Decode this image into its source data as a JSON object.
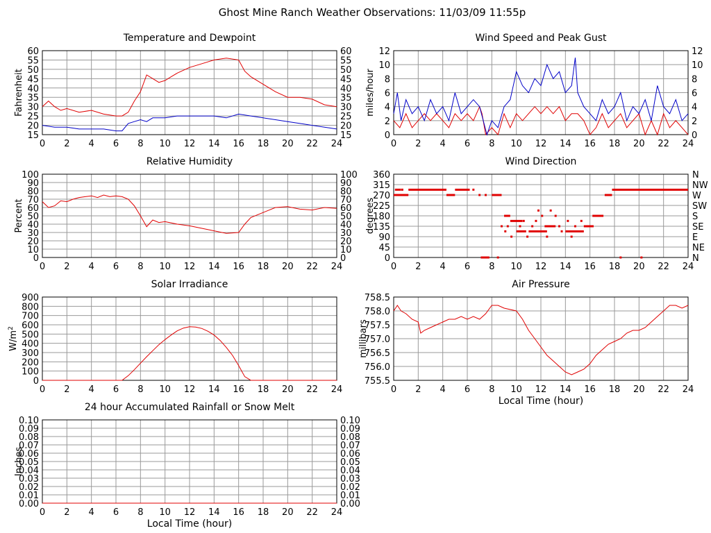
{
  "page_title": "Ghost Mine Ranch Weather Observations: 11/03/09 11:55p",
  "colors": {
    "red": "#e00000",
    "blue": "#0000c8",
    "grid": "#999999"
  },
  "chart_data": [
    {
      "id": "temperature",
      "type": "line",
      "title": "Temperature and Dewpoint",
      "ylabel": "Fahrenheit",
      "xlabel": "",
      "xlim": [
        0,
        24
      ],
      "ylim": [
        15,
        60
      ],
      "yticks": [
        "15",
        "20",
        "25",
        "30",
        "35",
        "40",
        "45",
        "50",
        "55",
        "60"
      ],
      "xticks": [
        "0",
        "2",
        "4",
        "6",
        "8",
        "10",
        "12",
        "14",
        "16",
        "18",
        "20",
        "22",
        "24"
      ],
      "right_axis": true,
      "series": [
        {
          "color": "#e00000",
          "x": [
            0,
            0.5,
            1,
            1.5,
            2,
            3,
            4,
            5,
            6,
            6.5,
            7,
            7.5,
            8,
            8.5,
            9,
            9.5,
            10,
            10.5,
            11,
            12,
            13,
            14,
            15,
            16,
            16.5,
            17,
            18,
            19,
            20,
            21,
            22,
            23,
            24
          ],
          "y": [
            30,
            33,
            30,
            28,
            29,
            27,
            28,
            26,
            25,
            25,
            27,
            33,
            38,
            47,
            45,
            43,
            44,
            46,
            48,
            51,
            53,
            55,
            56,
            55,
            49,
            46,
            42,
            38,
            35,
            35,
            34,
            31,
            30
          ]
        },
        {
          "color": "#0000c8",
          "x": [
            0,
            1,
            2,
            3,
            4,
            5,
            6,
            6.5,
            7,
            7.5,
            8,
            8.5,
            9,
            10,
            11,
            12,
            13,
            14,
            15,
            16,
            17,
            18,
            19,
            20,
            21,
            22,
            23,
            24
          ],
          "y": [
            20,
            19,
            19,
            18,
            18,
            18,
            17,
            17,
            21,
            22,
            23,
            22,
            24,
            24,
            25,
            25,
            25,
            25,
            24,
            26,
            25,
            24,
            23,
            22,
            21,
            20,
            19,
            18
          ]
        }
      ]
    },
    {
      "id": "wind_speed",
      "type": "line",
      "title": "Wind Speed and Peak Gust",
      "ylabel": "miles/hour",
      "xlabel": "",
      "xlim": [
        0,
        24
      ],
      "ylim": [
        0,
        12
      ],
      "yticks": [
        "0",
        "2",
        "4",
        "6",
        "8",
        "10",
        "12"
      ],
      "xticks": [
        "0",
        "2",
        "4",
        "6",
        "8",
        "10",
        "12",
        "14",
        "16",
        "18",
        "20",
        "22",
        "24"
      ],
      "right_axis": true,
      "series": [
        {
          "color": "#e00000",
          "x": [
            0,
            0.5,
            1,
            1.5,
            2,
            2.5,
            3,
            3.5,
            4,
            4.5,
            5,
            5.5,
            6,
            6.5,
            7,
            7.2,
            7.5,
            8,
            8.5,
            9,
            9.5,
            10,
            10.5,
            11,
            11.5,
            12,
            12.5,
            13,
            13.5,
            14,
            14.5,
            15,
            15.5,
            16,
            16.5,
            17,
            17.5,
            18,
            18.5,
            19,
            19.5,
            20,
            20.5,
            21,
            21.5,
            22,
            22.5,
            23,
            23.5,
            24
          ],
          "y": [
            2,
            1,
            3,
            1,
            2,
            3,
            2,
            3,
            2,
            1,
            3,
            2,
            3,
            2,
            4,
            3,
            0,
            1,
            0,
            3,
            1,
            3,
            2,
            3,
            4,
            3,
            4,
            3,
            4,
            2,
            3,
            3,
            2,
            0,
            1,
            3,
            1,
            2,
            3,
            1,
            2,
            3,
            0,
            2,
            0,
            3,
            1,
            2,
            1,
            0
          ]
        },
        {
          "color": "#0000c8",
          "x": [
            0,
            0.3,
            0.6,
            1,
            1.5,
            2,
            2.5,
            3,
            3.5,
            4,
            4.5,
            5,
            5.5,
            6,
            6.5,
            7,
            7.3,
            7.6,
            8,
            8.5,
            9,
            9.5,
            10,
            10.5,
            11,
            11.5,
            12,
            12.5,
            13,
            13.5,
            14,
            14.5,
            14.8,
            15,
            15.5,
            16,
            16.5,
            17,
            17.5,
            18,
            18.5,
            19,
            19.5,
            20,
            20.5,
            21,
            21.5,
            22,
            22.5,
            23,
            23.5,
            24
          ],
          "y": [
            3,
            6,
            2,
            5,
            3,
            4,
            2,
            5,
            3,
            4,
            2,
            6,
            3,
            4,
            5,
            4,
            2,
            0,
            2,
            1,
            4,
            5,
            9,
            7,
            6,
            8,
            7,
            10,
            8,
            9,
            6,
            7,
            11,
            6,
            4,
            3,
            2,
            5,
            3,
            4,
            6,
            2,
            4,
            3,
            5,
            2,
            7,
            4,
            3,
            5,
            2,
            3
          ]
        }
      ]
    },
    {
      "id": "humidity",
      "type": "line",
      "title": "Relative Humidity",
      "ylabel": "Percent",
      "xlabel": "",
      "xlim": [
        0,
        24
      ],
      "ylim": [
        0,
        100
      ],
      "yticks": [
        "0",
        "10",
        "20",
        "30",
        "40",
        "50",
        "60",
        "70",
        "80",
        "90",
        "100"
      ],
      "xticks": [
        "0",
        "2",
        "4",
        "6",
        "8",
        "10",
        "12",
        "14",
        "16",
        "18",
        "20",
        "22",
        "24"
      ],
      "right_axis": true,
      "series": [
        {
          "color": "#e00000",
          "x": [
            0,
            0.5,
            1,
            1.5,
            2,
            2.5,
            3,
            3.5,
            4,
            4.5,
            5,
            5.5,
            6,
            6.5,
            7,
            7.5,
            8,
            8.5,
            9,
            9.5,
            10,
            11,
            12,
            13,
            14,
            15,
            16,
            16.5,
            17,
            18,
            19,
            20,
            21,
            22,
            23,
            24
          ],
          "y": [
            67,
            60,
            62,
            68,
            67,
            70,
            72,
            73,
            74,
            72,
            75,
            73,
            74,
            73,
            70,
            62,
            50,
            37,
            45,
            42,
            43,
            40,
            38,
            35,
            32,
            29,
            30,
            40,
            48,
            54,
            60,
            61,
            58,
            57,
            60,
            59
          ]
        }
      ]
    },
    {
      "id": "wind_direction",
      "type": "scatter",
      "title": "Wind Direction",
      "ylabel": "degrees",
      "xlabel": "",
      "xlim": [
        0,
        24
      ],
      "ylim": [
        0,
        360
      ],
      "yticks": [
        "0",
        "45",
        "90",
        "135",
        "180",
        "225",
        "270",
        "315",
        "360"
      ],
      "xticks": [
        "0",
        "2",
        "4",
        "6",
        "8",
        "10",
        "12",
        "14",
        "16",
        "18",
        "20",
        "22",
        "24"
      ],
      "right_labels": [
        "N",
        "NE",
        "E",
        "SE",
        "S",
        "SW",
        "W",
        "NW",
        "N"
      ],
      "segments": [
        {
          "x0": 0,
          "x1": 1.2,
          "y": 270
        },
        {
          "x0": 0.1,
          "x1": 0.6,
          "y": 293
        },
        {
          "x0": 1.2,
          "x1": 4.3,
          "y": 293
        },
        {
          "x0": 4.3,
          "x1": 5.0,
          "y": 270
        },
        {
          "x0": 5.0,
          "x1": 6.2,
          "y": 293
        },
        {
          "x0": 7.1,
          "x1": 7.8,
          "y": 0
        },
        {
          "x0": 8.0,
          "x1": 8.8,
          "y": 270
        },
        {
          "x0": 9.0,
          "x1": 9.5,
          "y": 180
        },
        {
          "x0": 9.5,
          "x1": 10.5,
          "y": 158
        },
        {
          "x0": 10.0,
          "x1": 10.8,
          "y": 113
        },
        {
          "x0": 11.0,
          "x1": 12.5,
          "y": 113
        },
        {
          "x0": 12.3,
          "x1": 13.2,
          "y": 135
        },
        {
          "x0": 14.0,
          "x1": 15.5,
          "y": 113
        },
        {
          "x0": 15.5,
          "x1": 16.3,
          "y": 135
        },
        {
          "x0": 16.2,
          "x1": 17.1,
          "y": 180
        },
        {
          "x0": 17.2,
          "x1": 17.8,
          "y": 270
        },
        {
          "x0": 17.8,
          "x1": 24,
          "y": 293
        }
      ],
      "points": [
        {
          "x": 0.7,
          "y": 293
        },
        {
          "x": 1.1,
          "y": 270
        },
        {
          "x": 6.5,
          "y": 293
        },
        {
          "x": 7.0,
          "y": 270
        },
        {
          "x": 7.5,
          "y": 270
        },
        {
          "x": 8.5,
          "y": 0
        },
        {
          "x": 8.8,
          "y": 135
        },
        {
          "x": 9.1,
          "y": 113
        },
        {
          "x": 9.3,
          "y": 135
        },
        {
          "x": 9.6,
          "y": 90
        },
        {
          "x": 10.3,
          "y": 135
        },
        {
          "x": 10.6,
          "y": 158
        },
        {
          "x": 10.9,
          "y": 90
        },
        {
          "x": 11.3,
          "y": 135
        },
        {
          "x": 11.6,
          "y": 158
        },
        {
          "x": 11.8,
          "y": 203
        },
        {
          "x": 12.1,
          "y": 180
        },
        {
          "x": 12.5,
          "y": 90
        },
        {
          "x": 12.8,
          "y": 203
        },
        {
          "x": 13.2,
          "y": 180
        },
        {
          "x": 13.5,
          "y": 135
        },
        {
          "x": 13.7,
          "y": 113
        },
        {
          "x": 14.2,
          "y": 158
        },
        {
          "x": 14.5,
          "y": 90
        },
        {
          "x": 14.8,
          "y": 135
        },
        {
          "x": 15.3,
          "y": 158
        },
        {
          "x": 18.5,
          "y": 0
        },
        {
          "x": 20.2,
          "y": 0
        }
      ]
    },
    {
      "id": "solar",
      "type": "line",
      "title": "Solar Irradiance",
      "ylabel": "W/m2",
      "ylabel_main": "W/m",
      "ylabel_sup": "2",
      "xlabel": "",
      "xlim": [
        0,
        24
      ],
      "ylim": [
        0,
        900
      ],
      "yticks": [
        "0",
        "100",
        "200",
        "300",
        "400",
        "500",
        "600",
        "700",
        "800",
        "900"
      ],
      "xticks": [
        "0",
        "2",
        "4",
        "6",
        "8",
        "10",
        "12",
        "14",
        "16",
        "18",
        "20",
        "22",
        "24"
      ],
      "right_axis": false,
      "series": [
        {
          "color": "#e00000",
          "x": [
            0,
            6.5,
            7,
            7.5,
            8,
            8.5,
            9,
            9.5,
            10,
            10.5,
            11,
            11.5,
            12,
            12.5,
            13,
            13.5,
            14,
            14.5,
            15,
            15.5,
            16,
            16.5,
            17,
            24
          ],
          "y": [
            0,
            0,
            50,
            115,
            185,
            255,
            320,
            385,
            440,
            490,
            535,
            565,
            580,
            575,
            560,
            530,
            490,
            430,
            355,
            270,
            160,
            40,
            0,
            0
          ]
        }
      ]
    },
    {
      "id": "pressure",
      "type": "line",
      "title": "Air Pressure",
      "ylabel": "millibars",
      "xlabel": "Local Time (hour)",
      "xlim": [
        0,
        24
      ],
      "ylim": [
        755.5,
        758.5
      ],
      "yticks": [
        "755.5",
        "756.0",
        "756.5",
        "757.0",
        "757.5",
        "758.0",
        "758.5"
      ],
      "xticks": [
        "0",
        "2",
        "4",
        "6",
        "8",
        "10",
        "12",
        "14",
        "16",
        "18",
        "20",
        "22",
        "24"
      ],
      "right_axis": false,
      "series": [
        {
          "color": "#e00000",
          "x": [
            0,
            0.3,
            0.6,
            1,
            1.5,
            2,
            2.2,
            2.5,
            3,
            3.5,
            4,
            4.5,
            5,
            5.5,
            6,
            6.5,
            7,
            7.5,
            8,
            8.5,
            9,
            10,
            10.5,
            11,
            11.5,
            12,
            12.5,
            13,
            13.5,
            14,
            14.5,
            15,
            15.5,
            16,
            16.5,
            17,
            17.5,
            18,
            18.5,
            19,
            19.5,
            20,
            20.5,
            21,
            21.5,
            22,
            22.5,
            23,
            23.5,
            24
          ],
          "y": [
            758.0,
            758.2,
            758.0,
            757.9,
            757.7,
            757.6,
            757.2,
            757.3,
            757.4,
            757.5,
            757.6,
            757.7,
            757.7,
            757.8,
            757.7,
            757.8,
            757.7,
            757.9,
            758.2,
            758.2,
            758.1,
            758.0,
            757.7,
            757.3,
            757.0,
            756.7,
            756.4,
            756.2,
            756.0,
            755.8,
            755.7,
            755.8,
            755.9,
            756.1,
            756.4,
            756.6,
            756.8,
            756.9,
            757.0,
            757.2,
            757.3,
            757.3,
            757.4,
            757.6,
            757.8,
            758.0,
            758.2,
            758.2,
            758.1,
            758.2
          ]
        }
      ]
    },
    {
      "id": "rainfall",
      "type": "line",
      "title": "24 hour Accumulated Rainfall or Snow Melt",
      "ylabel": "Inches",
      "xlabel": "Local Time (hour)",
      "xlim": [
        0,
        24
      ],
      "ylim": [
        0,
        0.1
      ],
      "yticks": [
        "0.00",
        "0.01",
        "0.02",
        "0.03",
        "0.04",
        "0.05",
        "0.06",
        "0.07",
        "0.08",
        "0.09",
        "0.10"
      ],
      "xticks": [
        "0",
        "2",
        "4",
        "6",
        "8",
        "10",
        "12",
        "14",
        "16",
        "18",
        "20",
        "22",
        "24"
      ],
      "right_axis": true,
      "series": [
        {
          "color": "#e00000",
          "x": [
            0,
            24
          ],
          "y": [
            0,
            0
          ]
        }
      ]
    }
  ]
}
